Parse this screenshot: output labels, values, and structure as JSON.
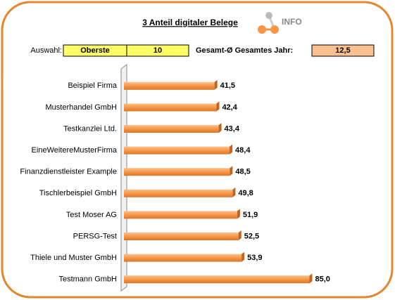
{
  "chart_data": {
    "type": "bar",
    "orientation": "horizontal",
    "title": "3 Anteil digitaler Belege",
    "categories": [
      "Beispiel Firma",
      "Musterhandel GmbH",
      "Testkanzlei Ltd.",
      "EineWeitereMusterFirma",
      "Finanzdienstleister Example",
      "Tischlerbeispiel GmbH",
      "Test Moser AG",
      "PERSG-Test",
      "Thiele und Muster GmbH",
      "Testmann GmbH"
    ],
    "values": [
      41.5,
      42.4,
      43.4,
      48.4,
      48.5,
      49.8,
      51.9,
      52.5,
      53.9,
      85.0
    ],
    "value_labels": [
      "41,5",
      "42,4",
      "43,4",
      "48,4",
      "48,5",
      "49,8",
      "51,9",
      "52,5",
      "53,9",
      "85,0"
    ],
    "color": "#f79646",
    "xlim": [
      0,
      100
    ]
  },
  "controls": {
    "info": "INFO",
    "selection_label": "Auswahl:",
    "selection_value": "Oberste",
    "count": 10,
    "total_label": "Gesamt-Ø Gesamtes Jahr:",
    "total_value": "12,5"
  }
}
